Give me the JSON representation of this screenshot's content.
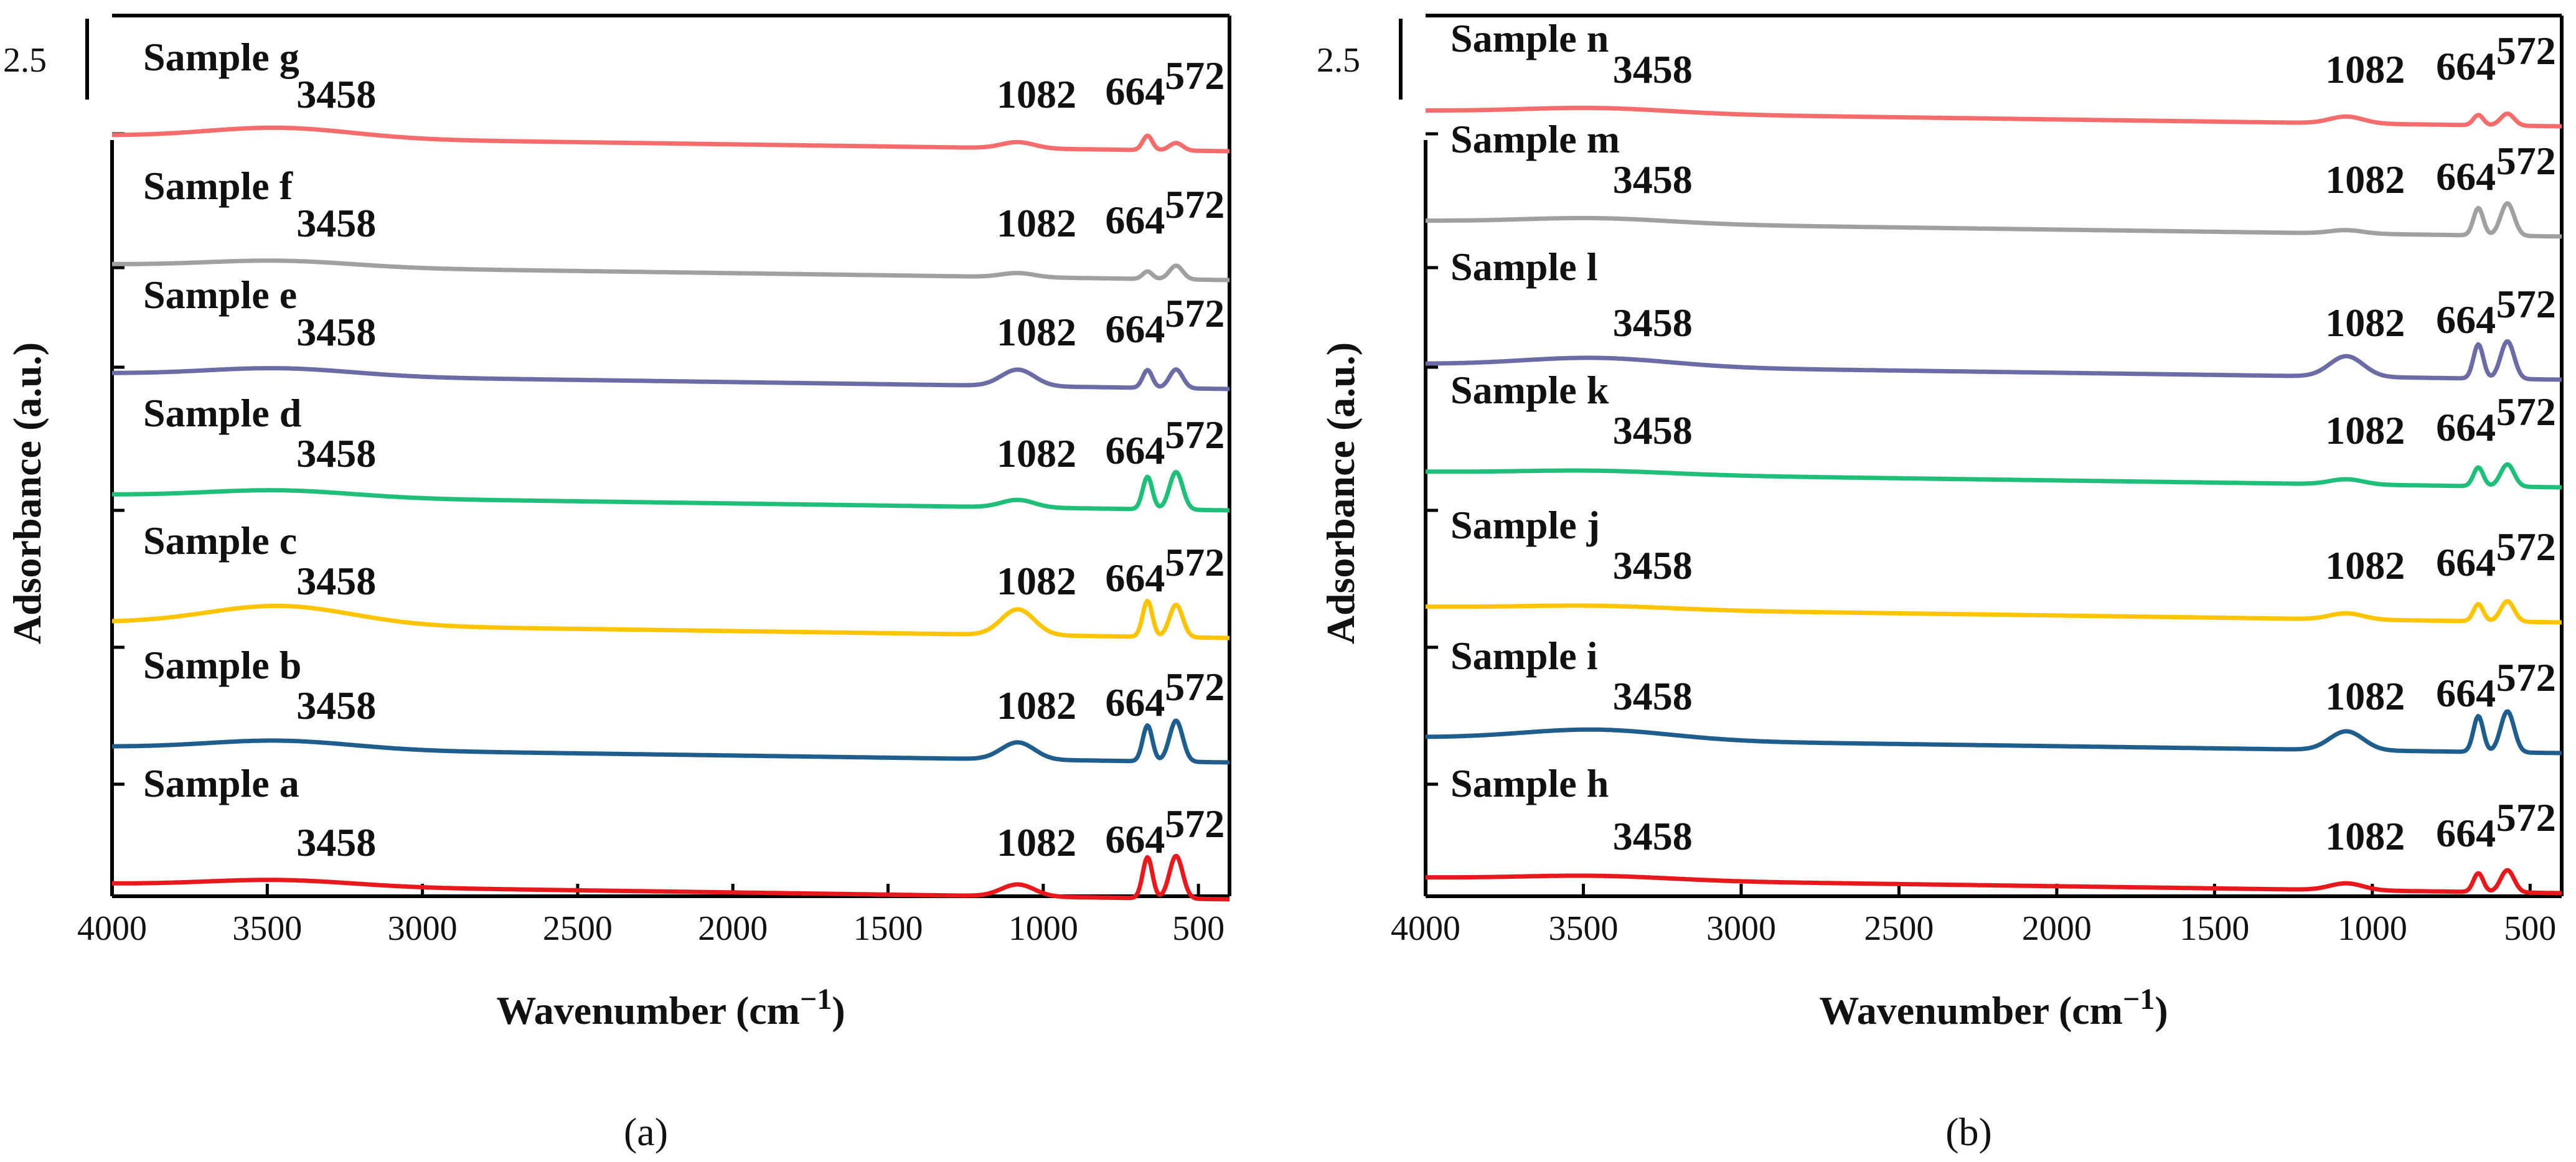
{
  "chart_data": [
    {
      "type": "line",
      "panel_label": "(a)",
      "xlabel": "Wavenumber (cm",
      "xlabel_sup": "−1",
      "xlabel_close": ")",
      "ylabel": "Adsorbance (a.u.)",
      "y_tick_label": "2.5",
      "xlim": [
        4000,
        400
      ],
      "x_ticks": [
        4000,
        3500,
        3000,
        2500,
        2000,
        1500,
        1000,
        500
      ],
      "peak_labels": [
        "3458",
        "1082",
        "664",
        "572"
      ],
      "series": [
        {
          "name": "Sample g",
          "color": "#F56C6C",
          "dips": [
            0.3,
            0.18,
            0.42,
            0.22
          ]
        },
        {
          "name": "Sample f",
          "color": "#A0A0A0",
          "dips": [
            0.18,
            0.12,
            0.22,
            0.4
          ]
        },
        {
          "name": "Sample e",
          "color": "#6B6BA6",
          "dips": [
            0.22,
            0.48,
            0.52,
            0.55
          ]
        },
        {
          "name": "Sample d",
          "color": "#1FBF7A",
          "dips": [
            0.2,
            0.22,
            0.95,
            1.1
          ]
        },
        {
          "name": "Sample c",
          "color": "#FFC400",
          "dips": [
            0.55,
            0.75,
            1.05,
            0.95
          ]
        },
        {
          "name": "Sample b",
          "color": "#1F5E8C",
          "dips": [
            0.25,
            0.5,
            1.05,
            1.2
          ]
        },
        {
          "name": "Sample a",
          "color": "#E8191C",
          "dips": [
            0.18,
            0.35,
            1.2,
            1.25
          ]
        }
      ]
    },
    {
      "type": "line",
      "panel_label": "(b)",
      "xlabel": "Wavenumber (cm",
      "xlabel_sup": "−1",
      "xlabel_close": ")",
      "ylabel": "Adsorbance (a.u.)",
      "y_tick_label": "2.5",
      "xlim": [
        4000,
        400
      ],
      "x_ticks": [
        4000,
        3500,
        3000,
        2500,
        2000,
        1500,
        1000,
        500
      ],
      "peak_labels": [
        "3458",
        "1082",
        "664",
        "572"
      ],
      "series": [
        {
          "name": "Sample n",
          "color": "#F56C6C",
          "dips": [
            0.15,
            0.2,
            0.3,
            0.35
          ]
        },
        {
          "name": "Sample m",
          "color": "#A0A0A0",
          "dips": [
            0.15,
            0.1,
            0.8,
            0.95
          ]
        },
        {
          "name": "Sample l",
          "color": "#6B6BA6",
          "dips": [
            0.25,
            0.6,
            1.0,
            1.1
          ]
        },
        {
          "name": "Sample k",
          "color": "#1FBF7A",
          "dips": [
            0.1,
            0.15,
            0.55,
            0.65
          ]
        },
        {
          "name": "Sample j",
          "color": "#FFC400",
          "dips": [
            0.1,
            0.18,
            0.5,
            0.6
          ]
        },
        {
          "name": "Sample i",
          "color": "#1F5E8C",
          "dips": [
            0.3,
            0.55,
            1.05,
            1.2
          ]
        },
        {
          "name": "Sample h",
          "color": "#E8191C",
          "dips": [
            0.12,
            0.2,
            0.55,
            0.65
          ]
        }
      ]
    }
  ]
}
